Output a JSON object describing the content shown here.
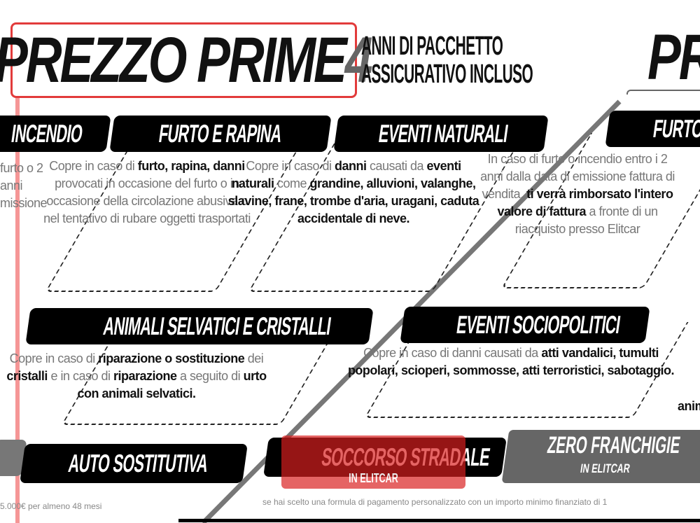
{
  "header": {
    "title_main": "PREZZO PRIME",
    "title_number": "4",
    "subtitle_line1": "ANNI DI PACCHETTO",
    "subtitle_line2": "ASSICURATIVO INCLUSO",
    "title_right_partial": "PR"
  },
  "cards": [
    {
      "title": "INCENDIO",
      "body": [
        {
          "t": "furto o 2 anni missione",
          "b": false
        }
      ]
    },
    {
      "title": "FURTO E RAPINA",
      "body": [
        {
          "t": "Copre in caso di ",
          "b": false
        },
        {
          "t": "furto, rapina, danni",
          "b": true
        },
        {
          "t": " provocati in occasione del furto o in occasione della circolazione abusiva o nel tentativo di rubare oggetti trasportati",
          "b": false
        }
      ]
    },
    {
      "title": "EVENTI NATURALI",
      "body": [
        {
          "t": "Copre in caso di ",
          "b": false
        },
        {
          "t": "danni",
          "b": true
        },
        {
          "t": " causati da ",
          "b": false
        },
        {
          "t": "eventi naturali",
          "b": true
        },
        {
          "t": " come ",
          "b": false
        },
        {
          "t": "grandine, alluvioni, valanghe, slavine, frane, trombe d'aria, uragani, caduta accidentale di neve.",
          "b": true
        }
      ]
    },
    {
      "title": "FURTO E INCENDIO",
      "body": [
        {
          "t": "In caso di furto o incendio entro i 2 anni dalla data di emissione fattura di vendita, ",
          "b": false
        },
        {
          "t": "ti verrà rimborsato l'intero valore di fattura",
          "b": true
        },
        {
          "t": " a fronte di un riacquisto presso Elitcar",
          "b": false
        }
      ]
    },
    {
      "title": "ANIMALI SELVATICI E CRISTALLI",
      "body": [
        {
          "t": "Copre in caso di ",
          "b": false
        },
        {
          "t": "riparazione o sostituzione",
          "b": true
        },
        {
          "t": " dei ",
          "b": false
        },
        {
          "t": "cristalli",
          "b": true
        },
        {
          "t": " e in caso di ",
          "b": false
        },
        {
          "t": "riparazione",
          "b": true
        },
        {
          "t": " a seguito di ",
          "b": false
        },
        {
          "t": "urto con animali selvatici.",
          "b": true
        }
      ]
    },
    {
      "title": "EVENTI SOCIOPOLITICI",
      "body": [
        {
          "t": "Copre in caso di danni causati da ",
          "b": false
        },
        {
          "t": "atti vandalici, tumulti popolari, scioperi, sommosse, atti terroristici, sabotaggio.",
          "b": true
        }
      ]
    }
  ],
  "right_partial_text": "animali",
  "badges": {
    "auto": "AUTO SOSTITUTIVA",
    "soccorso": "SOCCORSO STRADALE",
    "soccorso_sub": "IN ELITCAR",
    "zero": "ZERO FRANCHIGIE",
    "zero_sub": "IN ELITCAR"
  },
  "footer": {
    "left": "5.000€ per almeno 48 mesi",
    "right": "se hai scelto una formula di pagamento personalizzato con un importo minimo finanziato di 1"
  },
  "colors": {
    "accent_red": "#d91f1f",
    "grey": "#666666",
    "black": "#000000"
  }
}
